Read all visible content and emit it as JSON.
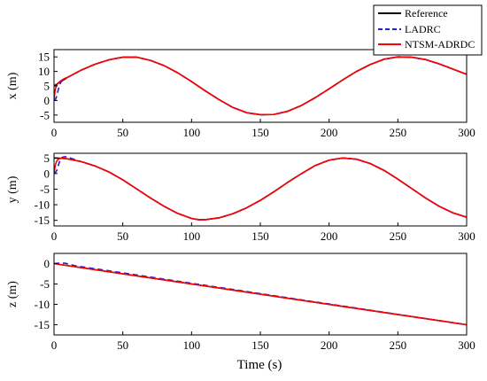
{
  "legend": {
    "placement": "top-right",
    "items": [
      {
        "label": "Reference",
        "color": "#000000",
        "dash": "solid"
      },
      {
        "label": "LADRC",
        "color": "#1f1fd6",
        "dash": "dashed"
      },
      {
        "label": "NTSM-ADRDC",
        "color": "#ff0000",
        "dash": "solid"
      }
    ]
  },
  "chart_data": [
    {
      "type": "line",
      "title": "",
      "xlabel": "",
      "ylabel": "x (m)",
      "xlim": [
        0,
        300
      ],
      "ylim": [
        -7.5,
        17.5
      ],
      "xticks": [
        "0",
        "50",
        "100",
        "150",
        "200",
        "250",
        "300"
      ],
      "yticks": [
        "15",
        "10",
        "5",
        "0",
        "-5"
      ],
      "xtick_values": [
        0,
        50,
        100,
        150,
        200,
        250,
        300
      ],
      "ytick_values": [
        15,
        10,
        5,
        0,
        -5
      ],
      "grid": false,
      "series": [
        {
          "name": "Reference",
          "x": [
            0,
            2,
            5,
            10,
            20,
            30,
            40,
            50,
            60,
            70,
            80,
            90,
            100,
            110,
            120,
            130,
            140,
            150,
            160,
            170,
            180,
            190,
            200,
            210,
            220,
            230,
            240,
            250,
            260,
            270,
            280,
            290,
            300
          ],
          "y": [
            5.0,
            5.6,
            6.5,
            8.0,
            10.5,
            12.5,
            14.0,
            14.9,
            14.9,
            13.8,
            12.0,
            9.5,
            6.5,
            3.3,
            0.3,
            -2.4,
            -4.2,
            -4.9,
            -4.8,
            -3.7,
            -1.7,
            1.0,
            4.0,
            7.1,
            10.0,
            12.4,
            14.2,
            15.0,
            14.9,
            14.1,
            12.6,
            10.8,
            9.0
          ]
        },
        {
          "name": "LADRC",
          "x": [
            0,
            1,
            2,
            3,
            4,
            5,
            7,
            10,
            20,
            30,
            40,
            50,
            60,
            70,
            80,
            90,
            100,
            110,
            120,
            130,
            140,
            150,
            160,
            170,
            180,
            190,
            200,
            210,
            220,
            230,
            240,
            250,
            260,
            270,
            280,
            290,
            300
          ],
          "y": [
            0.0,
            0.3,
            1.5,
            3.5,
            5.2,
            6.3,
            7.3,
            8.0,
            10.5,
            12.5,
            14.0,
            14.9,
            14.9,
            13.8,
            12.0,
            9.5,
            6.5,
            3.3,
            0.3,
            -2.4,
            -4.2,
            -4.9,
            -4.8,
            -3.7,
            -1.7,
            1.0,
            4.0,
            7.1,
            10.0,
            12.4,
            14.2,
            15.0,
            14.9,
            14.1,
            12.6,
            10.8,
            9.0
          ]
        },
        {
          "name": "NTSM-ADRDC",
          "x": [
            0,
            0.5,
            1,
            2,
            3,
            5,
            7,
            10,
            20,
            30,
            40,
            50,
            60,
            70,
            80,
            90,
            100,
            110,
            120,
            130,
            140,
            150,
            160,
            170,
            180,
            190,
            200,
            210,
            220,
            230,
            240,
            250,
            260,
            270,
            280,
            290,
            300
          ],
          "y": [
            0.0,
            2.5,
            4.0,
            5.3,
            6.0,
            6.8,
            7.4,
            8.0,
            10.5,
            12.5,
            14.0,
            14.9,
            14.9,
            13.8,
            12.0,
            9.5,
            6.5,
            3.3,
            0.3,
            -2.4,
            -4.2,
            -4.9,
            -4.8,
            -3.7,
            -1.7,
            1.0,
            4.0,
            7.1,
            10.0,
            12.4,
            14.2,
            15.0,
            14.9,
            14.1,
            12.6,
            10.8,
            9.0
          ]
        }
      ]
    },
    {
      "type": "line",
      "title": "",
      "xlabel": "",
      "ylabel": "y (m)",
      "xlim": [
        0,
        300
      ],
      "ylim": [
        -16.8,
        6.5
      ],
      "xticks": [
        "0",
        "50",
        "100",
        "150",
        "200",
        "250",
        "300"
      ],
      "yticks": [
        "5",
        "0",
        "-5",
        "-10",
        "-15"
      ],
      "xtick_values": [
        0,
        50,
        100,
        150,
        200,
        250,
        300
      ],
      "ytick_values": [
        5,
        0,
        -5,
        -10,
        -15
      ],
      "grid": false,
      "series": [
        {
          "name": "Reference",
          "x": [
            0,
            5,
            10,
            20,
            30,
            40,
            50,
            60,
            70,
            80,
            90,
            100,
            105,
            110,
            120,
            130,
            140,
            150,
            160,
            170,
            180,
            190,
            200,
            210,
            220,
            230,
            240,
            250,
            260,
            270,
            280,
            290,
            300
          ],
          "y": [
            5.0,
            4.9,
            4.7,
            3.8,
            2.4,
            0.5,
            -2.0,
            -4.9,
            -7.8,
            -10.5,
            -12.8,
            -14.4,
            -14.8,
            -14.8,
            -14.2,
            -12.9,
            -11.0,
            -8.6,
            -5.8,
            -2.8,
            0.0,
            2.6,
            4.3,
            5.0,
            4.6,
            3.2,
            1.0,
            -1.8,
            -4.8,
            -7.8,
            -10.5,
            -12.6,
            -14.0
          ]
        },
        {
          "name": "LADRC",
          "x": [
            0,
            1,
            2,
            3,
            4,
            5,
            6,
            8,
            10,
            13,
            20,
            30,
            40,
            50,
            60,
            70,
            80,
            90,
            100,
            105,
            110,
            120,
            130,
            140,
            150,
            160,
            170,
            180,
            190,
            200,
            210,
            220,
            230,
            240,
            250,
            260,
            270,
            280,
            290,
            300
          ],
          "y": [
            0.0,
            0.3,
            1.0,
            2.4,
            3.8,
            4.8,
            5.2,
            5.4,
            5.3,
            4.8,
            3.8,
            2.4,
            0.5,
            -2.0,
            -4.9,
            -7.8,
            -10.5,
            -12.8,
            -14.4,
            -14.8,
            -14.8,
            -14.2,
            -12.9,
            -11.0,
            -8.6,
            -5.8,
            -2.8,
            0.0,
            2.6,
            4.3,
            5.0,
            4.6,
            3.2,
            1.0,
            -1.8,
            -4.8,
            -7.8,
            -10.5,
            -12.6,
            -14.0
          ]
        },
        {
          "name": "NTSM-ADRDC",
          "x": [
            0,
            0.5,
            1,
            2,
            3,
            5,
            7,
            10,
            20,
            30,
            40,
            50,
            60,
            70,
            80,
            90,
            100,
            105,
            110,
            120,
            130,
            140,
            150,
            160,
            170,
            180,
            190,
            200,
            210,
            220,
            230,
            240,
            250,
            260,
            270,
            280,
            290,
            300
          ],
          "y": [
            0.0,
            1.5,
            2.8,
            4.0,
            4.6,
            4.9,
            4.9,
            4.7,
            3.8,
            2.4,
            0.5,
            -2.0,
            -4.9,
            -7.8,
            -10.5,
            -12.8,
            -14.4,
            -14.8,
            -14.8,
            -14.2,
            -12.9,
            -11.0,
            -8.6,
            -5.8,
            -2.8,
            0.0,
            2.6,
            4.3,
            5.0,
            4.6,
            3.2,
            1.0,
            -1.8,
            -4.8,
            -7.8,
            -10.5,
            -12.6,
            -14.0
          ]
        }
      ]
    },
    {
      "type": "line",
      "title": "",
      "xlabel": "Time (s)",
      "ylabel": "z (m)",
      "xlim": [
        0,
        300
      ],
      "ylim": [
        -17.5,
        2.5
      ],
      "xticks": [
        "0",
        "50",
        "100",
        "150",
        "200",
        "250",
        "300"
      ],
      "yticks": [
        "0",
        "-5",
        "-10",
        "-15"
      ],
      "xtick_values": [
        0,
        50,
        100,
        150,
        200,
        250,
        300
      ],
      "ytick_values": [
        0,
        -5,
        -10,
        -15
      ],
      "grid": false,
      "series": [
        {
          "name": "Reference",
          "x": [
            0,
            300
          ],
          "y": [
            0.0,
            -15.0
          ]
        },
        {
          "name": "LADRC",
          "x": [
            0,
            3,
            8,
            15,
            300
          ],
          "y": [
            0.0,
            0.1,
            0.1,
            -0.5,
            -15.0
          ]
        },
        {
          "name": "NTSM-ADRDC",
          "x": [
            0,
            300
          ],
          "y": [
            0.0,
            -15.0
          ]
        }
      ]
    }
  ]
}
